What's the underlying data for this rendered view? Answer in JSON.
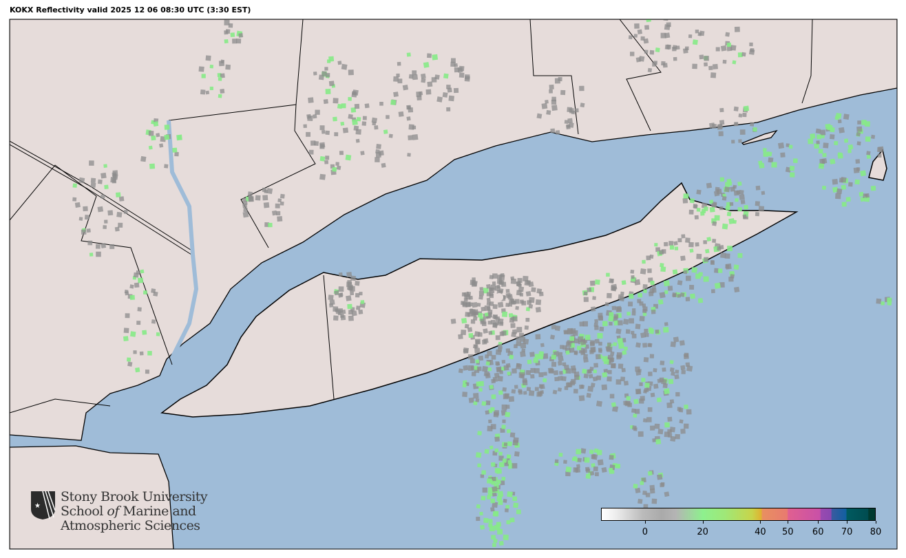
{
  "title": "KOKX Reflectivity valid 2025 12 06 08:30 UTC (3:30 EST)",
  "colors": {
    "water": "#9fbcd8",
    "land": "#e6dcda",
    "echo_gray": "#8c8c8c",
    "echo_green": "#86ea86"
  },
  "colorbar": {
    "units_range": [
      -15,
      80
    ],
    "ticks": [
      {
        "label": "0",
        "pos": 0.16
      },
      {
        "label": "20",
        "pos": 0.37
      },
      {
        "label": "40",
        "pos": 0.58
      },
      {
        "label": "50",
        "pos": 0.68
      },
      {
        "label": "60",
        "pos": 0.79
      },
      {
        "label": "70",
        "pos": 0.895
      },
      {
        "label": "80",
        "pos": 1.0
      }
    ]
  },
  "logo": {
    "line1": "Stony Brook University",
    "line2a": "School ",
    "line2b": "of",
    "line2c": " Marine and",
    "line3": "Atmospheric Sciences"
  }
}
